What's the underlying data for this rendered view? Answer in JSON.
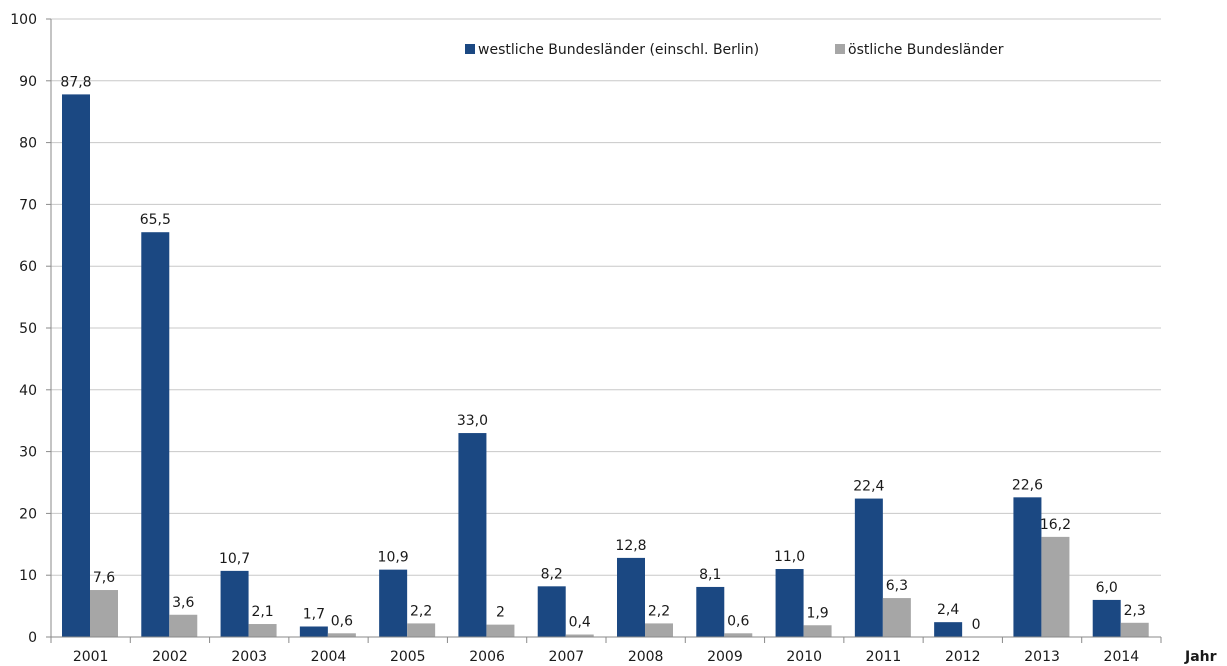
{
  "chart_data": {
    "type": "bar",
    "categories": [
      "2001",
      "2002",
      "2003",
      "2004",
      "2005",
      "2006",
      "2007",
      "2008",
      "2009",
      "2010",
      "2011",
      "2012",
      "2013",
      "2014"
    ],
    "series": [
      {
        "name": "westliche Bundesländer (einschl. Berlin)",
        "color": "#1b4882",
        "values": [
          87.8,
          65.5,
          10.7,
          1.7,
          10.9,
          33.0,
          8.2,
          12.8,
          8.1,
          11.0,
          22.4,
          2.4,
          22.6,
          6.0
        ],
        "labels": [
          "87,8",
          "65,5",
          "10,7",
          "1,7",
          "10,9",
          "33,0",
          "8,2",
          "12,8",
          "8,1",
          "11,0",
          "22,4",
          "2,4",
          "22,6",
          "6,0"
        ]
      },
      {
        "name": "östliche Bundesländer",
        "color": "#a6a6a6",
        "values": [
          7.6,
          3.6,
          2.1,
          0.6,
          2.2,
          2,
          0.4,
          2.2,
          0.6,
          1.9,
          6.3,
          0,
          16.2,
          2.3
        ],
        "labels": [
          "7,6",
          "3,6",
          "2,1",
          "0,6",
          "2,2",
          "2",
          "0,4",
          "2,2",
          "0,6",
          "1,9",
          "6,3",
          "0",
          "16,2",
          "2,3"
        ]
      }
    ],
    "xlabel": "Jahr",
    "ylabel": "",
    "ylim": [
      0,
      100
    ],
    "yticks": [
      0,
      10,
      20,
      30,
      40,
      50,
      60,
      70,
      80,
      90,
      100
    ],
    "grid": true,
    "legend_position": "top-right"
  }
}
